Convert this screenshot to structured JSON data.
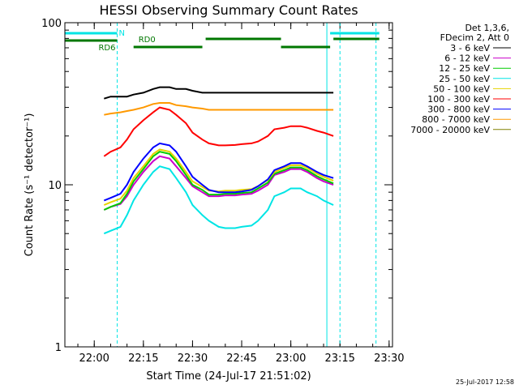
{
  "chart_data": {
    "type": "line",
    "title": "HESSI Observing Summary Count Rates",
    "xlabel": "Start Time (24-Jul-17 21:51:02)",
    "ylabel": "Count Rate (s⁻¹ detector⁻¹)",
    "x_ticks": [
      "22:00",
      "22:15",
      "22:30",
      "22:45",
      "23:00",
      "23:15",
      "23:30"
    ],
    "x_range": [
      "21:51:02",
      "23:31:02"
    ],
    "y_scale": "log",
    "y_ticks": [
      "1",
      "10",
      "100"
    ],
    "ylim": [
      1,
      100
    ],
    "legend_header": [
      "Det 1,3,6,",
      "FDecim 2, Att 0"
    ],
    "legend_position": "right",
    "series": [
      {
        "name": "3 - 6 keV",
        "color": "#000000",
        "x": [
          "22:03",
          "22:05",
          "22:08",
          "22:10",
          "22:12",
          "22:15",
          "22:18",
          "22:20",
          "22:23",
          "22:25",
          "22:28",
          "22:30",
          "22:33",
          "22:35",
          "22:38",
          "22:40",
          "22:43",
          "22:45",
          "22:48",
          "22:50",
          "22:53",
          "22:55",
          "22:58",
          "23:00",
          "23:03",
          "23:05",
          "23:08",
          "23:10",
          "23:13"
        ],
        "values": [
          34,
          35,
          35,
          35,
          36,
          37,
          39,
          40,
          40,
          39,
          39,
          38,
          37,
          37,
          37,
          37,
          37,
          37,
          37,
          37,
          37,
          37,
          37,
          37,
          37,
          37,
          37,
          37,
          37
        ]
      },
      {
        "name": "6 - 12 keV",
        "color": "#cc00cc",
        "x": [
          "22:03",
          "22:05",
          "22:08",
          "22:10",
          "22:12",
          "22:15",
          "22:18",
          "22:20",
          "22:23",
          "22:25",
          "22:28",
          "22:30",
          "22:33",
          "22:35",
          "22:38",
          "22:40",
          "22:43",
          "22:45",
          "22:48",
          "22:50",
          "22:53",
          "22:55",
          "22:58",
          "23:00",
          "23:03",
          "23:05",
          "23:08",
          "23:10",
          "23:13"
        ],
        "values": [
          7,
          7.3,
          7.6,
          8.5,
          10,
          12,
          14,
          15,
          14.5,
          13,
          11,
          9.8,
          9,
          8.5,
          8.5,
          8.6,
          8.6,
          8.7,
          8.8,
          9.2,
          10,
          11.5,
          12,
          12.5,
          12.5,
          12,
          11,
          10.5,
          10
        ]
      },
      {
        "name": "12 - 25 keV",
        "color": "#00cc00",
        "x": [
          "22:03",
          "22:05",
          "22:08",
          "22:10",
          "22:12",
          "22:15",
          "22:18",
          "22:20",
          "22:23",
          "22:25",
          "22:28",
          "22:30",
          "22:33",
          "22:35",
          "22:38",
          "22:40",
          "22:43",
          "22:45",
          "22:48",
          "22:50",
          "22:53",
          "22:55",
          "22:58",
          "23:00",
          "23:03",
          "23:05",
          "23:08",
          "23:10",
          "23:13"
        ],
        "values": [
          7,
          7.3,
          7.7,
          8.8,
          10.5,
          12.5,
          15,
          16,
          15.5,
          14,
          11.5,
          10,
          9.3,
          8.7,
          8.7,
          8.8,
          8.8,
          8.9,
          9,
          9.5,
          10.3,
          11.7,
          12.3,
          12.8,
          12.8,
          12.3,
          11.3,
          10.8,
          10.2
        ]
      },
      {
        "name": "25 - 50 keV",
        "color": "#00e5e5",
        "x": [
          "22:03",
          "22:05",
          "22:08",
          "22:10",
          "22:12",
          "22:15",
          "22:18",
          "22:20",
          "22:23",
          "22:25",
          "22:28",
          "22:30",
          "22:33",
          "22:35",
          "22:38",
          "22:40",
          "22:43",
          "22:45",
          "22:48",
          "22:50",
          "22:53",
          "22:55",
          "22:58",
          "23:00",
          "23:03",
          "23:05",
          "23:08",
          "23:10",
          "23:13"
        ],
        "values": [
          5,
          5.2,
          5.5,
          6.5,
          8,
          10,
          12,
          13,
          12.5,
          11,
          9,
          7.5,
          6.5,
          6,
          5.5,
          5.4,
          5.4,
          5.5,
          5.6,
          6,
          7,
          8.5,
          9,
          9.5,
          9.5,
          9,
          8.5,
          8,
          7.5
        ]
      },
      {
        "name": "50 - 100 keV",
        "color": "#e6d200",
        "x": [
          "22:03",
          "22:05",
          "22:08",
          "22:10",
          "22:12",
          "22:15",
          "22:18",
          "22:20",
          "22:23",
          "22:25",
          "22:28",
          "22:30",
          "22:33",
          "22:35",
          "22:38",
          "22:40",
          "22:43",
          "22:45",
          "22:48",
          "22:50",
          "22:53",
          "22:55",
          "22:58",
          "23:00",
          "23:03",
          "23:05",
          "23:08",
          "23:10",
          "23:13"
        ],
        "values": [
          7.5,
          7.8,
          8.2,
          9.2,
          11,
          13,
          15.5,
          16.5,
          16,
          14.5,
          12,
          10.5,
          9.7,
          9.2,
          9.1,
          9.2,
          9.2,
          9.3,
          9.4,
          9.8,
          10.7,
          12,
          12.7,
          13.2,
          13.2,
          12.7,
          11.7,
          11.2,
          10.6
        ]
      },
      {
        "name": "100 - 300 keV",
        "color": "#ff0000",
        "x": [
          "22:03",
          "22:05",
          "22:08",
          "22:10",
          "22:12",
          "22:15",
          "22:18",
          "22:20",
          "22:23",
          "22:25",
          "22:28",
          "22:30",
          "22:33",
          "22:35",
          "22:38",
          "22:40",
          "22:43",
          "22:45",
          "22:48",
          "22:50",
          "22:53",
          "22:55",
          "22:58",
          "23:00",
          "23:03",
          "23:05",
          "23:08",
          "23:10",
          "23:13"
        ],
        "values": [
          15,
          16,
          17,
          19,
          22,
          25,
          28,
          30,
          29,
          27,
          24,
          21,
          19,
          18,
          17.5,
          17.5,
          17.6,
          17.8,
          18,
          18.5,
          20,
          22,
          22.5,
          23,
          23,
          22.5,
          21.5,
          21,
          20
        ]
      },
      {
        "name": "300 - 800 keV",
        "color": "#0000ff",
        "x": [
          "22:03",
          "22:05",
          "22:08",
          "22:10",
          "22:12",
          "22:15",
          "22:18",
          "22:20",
          "22:23",
          "22:25",
          "22:28",
          "22:30",
          "22:33",
          "22:35",
          "22:38",
          "22:40",
          "22:43",
          "22:45",
          "22:48",
          "22:50",
          "22:53",
          "22:55",
          "22:58",
          "23:00",
          "23:03",
          "23:05",
          "23:08",
          "23:10",
          "23:13"
        ],
        "values": [
          8,
          8.3,
          8.8,
          10,
          12,
          14.5,
          17,
          18,
          17.5,
          16,
          13,
          11.2,
          10,
          9.3,
          9,
          9,
          9,
          9.1,
          9.3,
          9.8,
          10.8,
          12.3,
          13,
          13.6,
          13.6,
          13,
          12,
          11.5,
          11
        ]
      },
      {
        "name": "800 - 7000 keV",
        "color": "#ff9900",
        "x": [
          "22:03",
          "22:05",
          "22:08",
          "22:10",
          "22:12",
          "22:15",
          "22:18",
          "22:20",
          "22:23",
          "22:25",
          "22:28",
          "22:30",
          "22:33",
          "22:35",
          "22:38",
          "22:40",
          "22:43",
          "22:45",
          "22:48",
          "22:50",
          "22:53",
          "22:55",
          "22:58",
          "23:00",
          "23:03",
          "23:05",
          "23:08",
          "23:10",
          "23:13"
        ],
        "values": [
          27,
          27.5,
          28,
          28.5,
          29,
          30,
          31.5,
          32,
          32,
          31,
          30.5,
          30,
          29.5,
          29,
          29,
          29,
          29,
          29,
          29,
          29,
          29,
          29,
          29,
          29,
          29,
          29,
          29,
          29,
          29
        ]
      },
      {
        "name": "7000 - 20000 keV",
        "color": "#808000",
        "x": [],
        "values": []
      }
    ],
    "spacecraft_flags": [
      {
        "label": "N",
        "color": "#00e5e5",
        "start": "21:51:02",
        "end": "22:07"
      },
      {
        "label": "",
        "color": "#00e5e5",
        "start": "23:12",
        "end": "23:27"
      },
      {
        "label": "RD0",
        "color": "#007700",
        "start": "22:12",
        "end": "22:33"
      },
      {
        "label": "",
        "color": "#007700",
        "start": "22:34",
        "end": "22:57"
      },
      {
        "label": "",
        "color": "#007700",
        "start": "22:57",
        "end": "23:12"
      },
      {
        "label": "",
        "color": "#007700",
        "start": "23:13",
        "end": "23:27"
      },
      {
        "label": "RD6",
        "color": "#007700",
        "start": "21:51:02",
        "end": "22:07"
      }
    ],
    "vertical_markers": [
      {
        "time": "21:51:02",
        "color": "#00e5e5",
        "style": "solid"
      },
      {
        "time": "22:07",
        "color": "#00e5e5",
        "style": "dashed"
      },
      {
        "time": "23:11",
        "color": "#00e5e5",
        "style": "solid"
      },
      {
        "time": "23:15",
        "color": "#00e5e5",
        "style": "dashed"
      },
      {
        "time": "23:26",
        "color": "#00e5e5",
        "style": "dashed"
      }
    ]
  },
  "timestamp": "25-Jul-2017 12:58"
}
